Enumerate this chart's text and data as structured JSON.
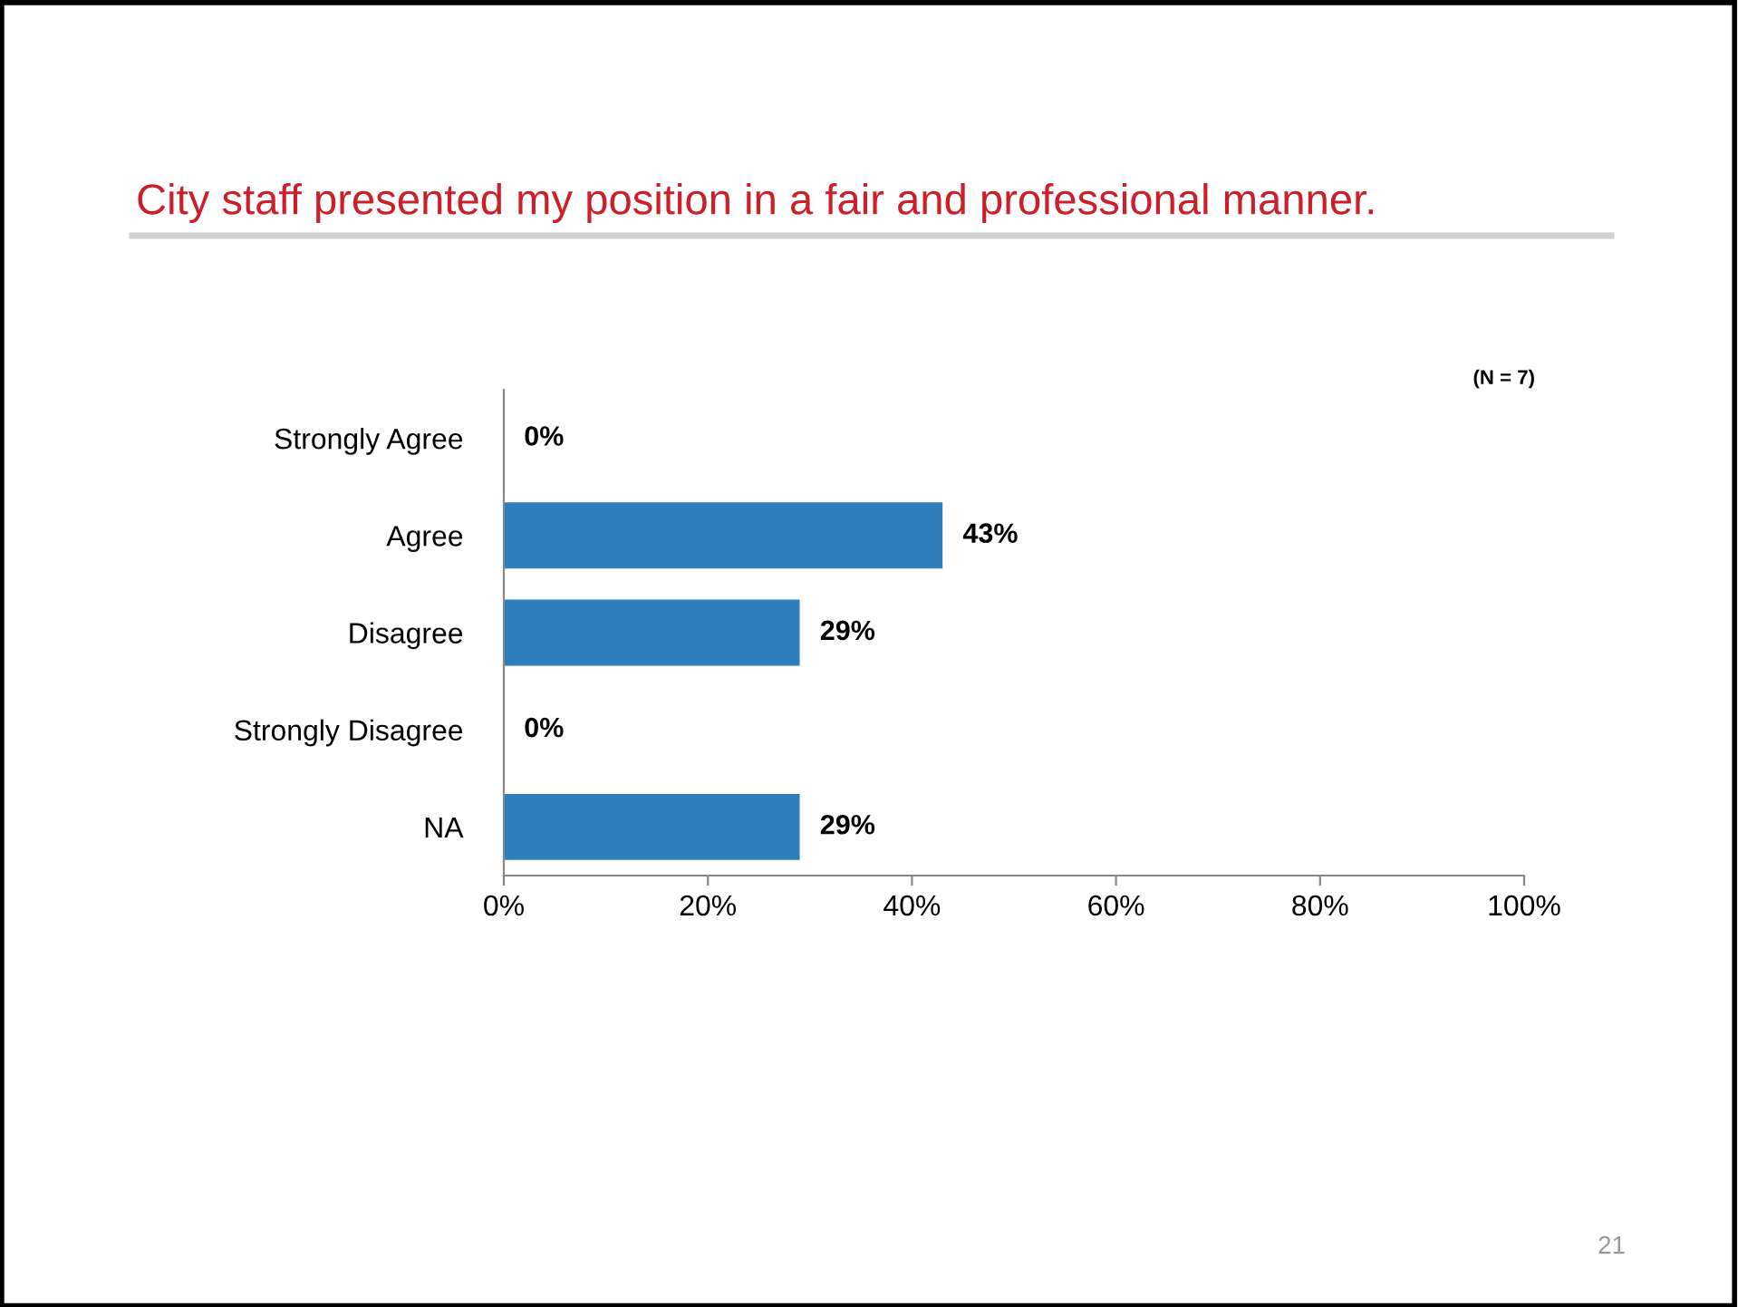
{
  "chart_data": {
    "type": "bar",
    "orientation": "horizontal",
    "title": "City staff presented my position in a fair and professional manner.",
    "categories": [
      "Strongly Agree",
      "Agree",
      "Disagree",
      "Strongly Disagree",
      "NA"
    ],
    "values": [
      0,
      43,
      29,
      0,
      29
    ],
    "color": "#2e7ebc",
    "value_labels": [
      "0%",
      "43%",
      "29%",
      "0%",
      "29%"
    ],
    "xlim": [
      0,
      100
    ],
    "xticks": [
      {
        "value": 0,
        "label": "0%"
      },
      {
        "value": 20,
        "label": "20%"
      },
      {
        "value": 40,
        "label": "40%"
      },
      {
        "value": 60,
        "label": "60%"
      },
      {
        "value": 80,
        "label": "80%"
      },
      {
        "value": 100,
        "label": "100%"
      }
    ],
    "grid": false,
    "annotations": [
      "(N = 7)",
      "21"
    ]
  }
}
